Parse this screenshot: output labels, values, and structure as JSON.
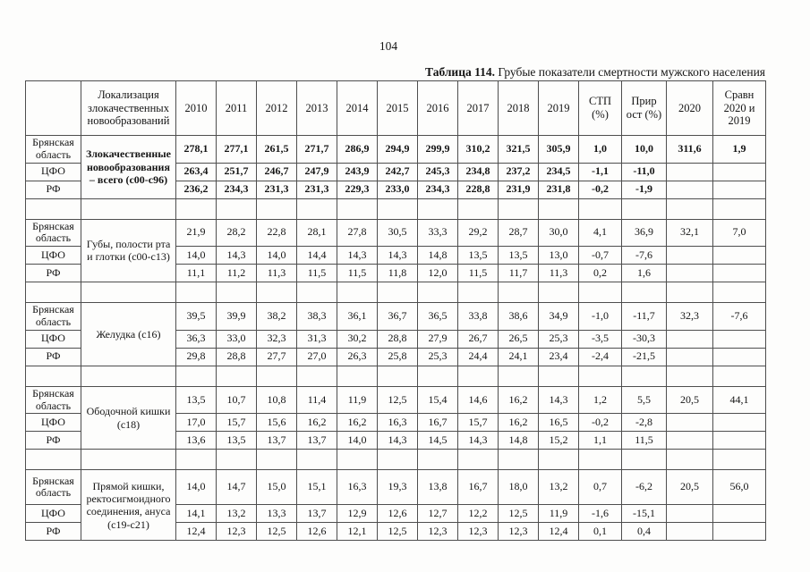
{
  "page": {
    "number": "104"
  },
  "table": {
    "title_bold": "Таблица 114.",
    "title_rest": " Грубые показатели смертности мужского населения",
    "header": {
      "region": "",
      "localization": "Локализация злокачественных новообразований",
      "years": [
        "2010",
        "2011",
        "2012",
        "2013",
        "2014",
        "2015",
        "2016",
        "2017",
        "2018",
        "2019"
      ],
      "stp": "СТП (%)",
      "growth": "Прир ост (%)",
      "year2020": "2020",
      "compare": "Сравн 2020 и 2019"
    },
    "groups": [
      {
        "localization": "Злокачественные новообразования – всего (с00-с96)",
        "bold": true,
        "rows": [
          {
            "region": "Брянская область",
            "values": [
              "278,1",
              "277,1",
              "261,5",
              "271,7",
              "286,9",
              "294,9",
              "299,9",
              "310,2",
              "321,5",
              "305,9",
              "1,0",
              "10,0",
              "311,6",
              "1,9"
            ]
          },
          {
            "region": "ЦФО",
            "values": [
              "263,4",
              "251,7",
              "246,7",
              "247,9",
              "243,9",
              "242,7",
              "245,3",
              "234,8",
              "237,2",
              "234,5",
              "-1,1",
              "-11,0",
              "",
              ""
            ]
          },
          {
            "region": "РФ",
            "values": [
              "236,2",
              "234,3",
              "231,3",
              "231,3",
              "229,3",
              "233,0",
              "234,3",
              "228,8",
              "231,9",
              "231,8",
              "-0,2",
              "-1,9",
              "",
              ""
            ]
          }
        ]
      },
      {
        "localization": "Губы, полости рта и глотки (с00-с13)",
        "bold": false,
        "rows": [
          {
            "region": "Брянская область",
            "values": [
              "21,9",
              "28,2",
              "22,8",
              "28,1",
              "27,8",
              "30,5",
              "33,3",
              "29,2",
              "28,7",
              "30,0",
              "4,1",
              "36,9",
              "32,1",
              "7,0"
            ]
          },
          {
            "region": "ЦФО",
            "values": [
              "14,0",
              "14,3",
              "14,0",
              "14,4",
              "14,3",
              "14,3",
              "14,8",
              "13,5",
              "13,5",
              "13,0",
              "-0,7",
              "-7,6",
              "",
              ""
            ]
          },
          {
            "region": "РФ",
            "values": [
              "11,1",
              "11,2",
              "11,3",
              "11,5",
              "11,5",
              "11,8",
              "12,0",
              "11,5",
              "11,7",
              "11,3",
              "0,2",
              "1,6",
              "",
              ""
            ]
          }
        ]
      },
      {
        "localization": "Желудка (с16)",
        "bold": false,
        "rows": [
          {
            "region": "Брянская область",
            "values": [
              "39,5",
              "39,9",
              "38,2",
              "38,3",
              "36,1",
              "36,7",
              "36,5",
              "33,8",
              "38,6",
              "34,9",
              "-1,0",
              "-11,7",
              "32,3",
              "-7,6"
            ]
          },
          {
            "region": "ЦФО",
            "values": [
              "36,3",
              "33,0",
              "32,3",
              "31,3",
              "30,2",
              "28,8",
              "27,9",
              "26,7",
              "26,5",
              "25,3",
              "-3,5",
              "-30,3",
              "",
              ""
            ]
          },
          {
            "region": "РФ",
            "values": [
              "29,8",
              "28,8",
              "27,7",
              "27,0",
              "26,3",
              "25,8",
              "25,3",
              "24,4",
              "24,1",
              "23,4",
              "-2,4",
              "-21,5",
              "",
              ""
            ]
          }
        ]
      },
      {
        "localization": "Ободочной кишки (с18)",
        "bold": false,
        "rows": [
          {
            "region": "Брянская область",
            "values": [
              "13,5",
              "10,7",
              "10,8",
              "11,4",
              "11,9",
              "12,5",
              "15,4",
              "14,6",
              "16,2",
              "14,3",
              "1,2",
              "5,5",
              "20,5",
              "44,1"
            ]
          },
          {
            "region": "ЦФО",
            "values": [
              "17,0",
              "15,7",
              "15,6",
              "16,2",
              "16,2",
              "16,3",
              "16,7",
              "15,7",
              "16,2",
              "16,5",
              "-0,2",
              "-2,8",
              "",
              ""
            ]
          },
          {
            "region": "РФ",
            "values": [
              "13,6",
              "13,5",
              "13,7",
              "13,7",
              "14,0",
              "14,3",
              "14,5",
              "14,3",
              "14,8",
              "15,2",
              "1,1",
              "11,5",
              "",
              ""
            ]
          }
        ]
      },
      {
        "localization": "Прямой кишки, ректосигмоидного соединения, ануса (с19-с21)",
        "bold": false,
        "rows": [
          {
            "region": "Брянская область",
            "values": [
              "14,0",
              "14,7",
              "15,0",
              "15,1",
              "16,3",
              "19,3",
              "13,8",
              "16,7",
              "18,0",
              "13,2",
              "0,7",
              "-6,2",
              "20,5",
              "56,0"
            ]
          },
          {
            "region": "ЦФО",
            "values": [
              "14,1",
              "13,2",
              "13,3",
              "13,7",
              "12,9",
              "12,6",
              "12,7",
              "12,2",
              "12,5",
              "11,9",
              "-1,6",
              "-15,1",
              "",
              ""
            ]
          },
          {
            "region": "РФ",
            "values": [
              "12,4",
              "12,3",
              "12,5",
              "12,6",
              "12,1",
              "12,5",
              "12,3",
              "12,3",
              "12,3",
              "12,4",
              "0,1",
              "0,4",
              "",
              ""
            ]
          }
        ]
      }
    ]
  }
}
